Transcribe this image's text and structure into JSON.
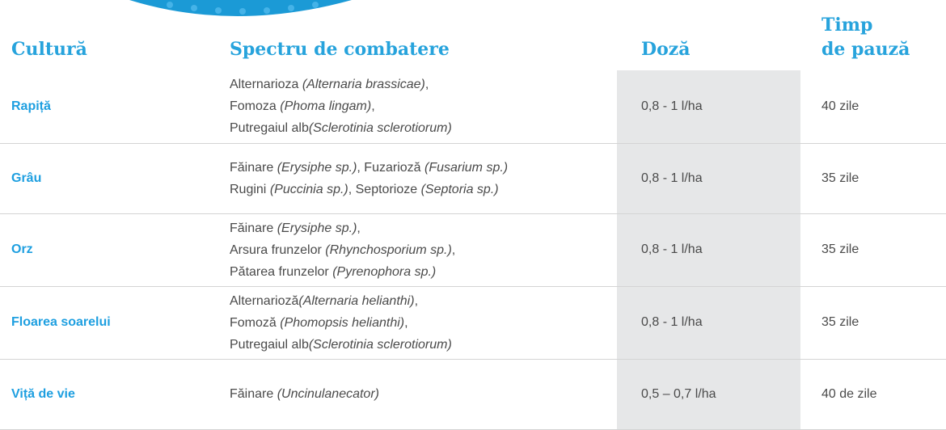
{
  "table": {
    "headers": {
      "crop": "Cultură",
      "spectrum": "Spectru de combatere",
      "dose": "Doză",
      "interval": [
        "Timp",
        "de pauză"
      ]
    },
    "rows": [
      {
        "crop": "Rapiță",
        "spectrum": [
          [
            {
              "text": "Alternarioza "
            },
            {
              "text": "(Alternaria brassicae)",
              "italic": true
            },
            {
              "text": ","
            }
          ],
          [
            {
              "text": "Fomoza "
            },
            {
              "text": "(Phoma lingam)",
              "italic": true
            },
            {
              "text": ","
            }
          ],
          [
            {
              "text": "Putregaiul alb"
            },
            {
              "text": "(Sclerotinia sclerotiorum)",
              "italic": true
            }
          ]
        ],
        "dose": "0,8 - 1 l/ha",
        "interval": "40 zile"
      },
      {
        "crop": "Grâu",
        "spectrum": [
          [
            {
              "text": "Făinare "
            },
            {
              "text": "(Erysiphe sp.)",
              "italic": true
            },
            {
              "text": ", Fuzarioză "
            },
            {
              "text": "(Fusarium sp.)",
              "italic": true
            }
          ],
          [
            {
              "text": "Rugini "
            },
            {
              "text": "(Puccinia sp.)",
              "italic": true
            },
            {
              "text": ", Septorioze "
            },
            {
              "text": "(Septoria sp.)",
              "italic": true
            }
          ]
        ],
        "dose": "0,8 - 1 l/ha",
        "interval": "35 zile"
      },
      {
        "crop": "Orz",
        "spectrum": [
          [
            {
              "text": "Făinare "
            },
            {
              "text": "(Erysiphe sp.)",
              "italic": true
            },
            {
              "text": ","
            }
          ],
          [
            {
              "text": "Arsura frunzelor "
            },
            {
              "text": "(Rhynchosporium sp.)",
              "italic": true
            },
            {
              "text": ","
            }
          ],
          [
            {
              "text": "Pătarea frunzelor "
            },
            {
              "text": "(Pyrenophora sp.)",
              "italic": true
            }
          ]
        ],
        "dose": "0,8 - 1 l/ha",
        "interval": "35 zile"
      },
      {
        "crop": "Floarea soarelui",
        "spectrum": [
          [
            {
              "text": "Alternarioză"
            },
            {
              "text": "(Alternaria helianthi)",
              "italic": true
            },
            {
              "text": ","
            }
          ],
          [
            {
              "text": "Fomoză "
            },
            {
              "text": "(Phomopsis helianthi)",
              "italic": true
            },
            {
              "text": ","
            }
          ],
          [
            {
              "text": "Putregaiul alb"
            },
            {
              "text": "(Sclerotinia sclerotiorum)",
              "italic": true
            }
          ]
        ],
        "dose": "0,8 - 1 l/ha",
        "interval": "35 zile"
      },
      {
        "crop": "Viță de vie",
        "spectrum": [
          [
            {
              "text": "Făinare "
            },
            {
              "text": "(Uncinulanecator)",
              "italic": true
            }
          ]
        ],
        "dose": "0,5 – 0,7 l/ha",
        "interval": "40 de zile"
      }
    ]
  }
}
